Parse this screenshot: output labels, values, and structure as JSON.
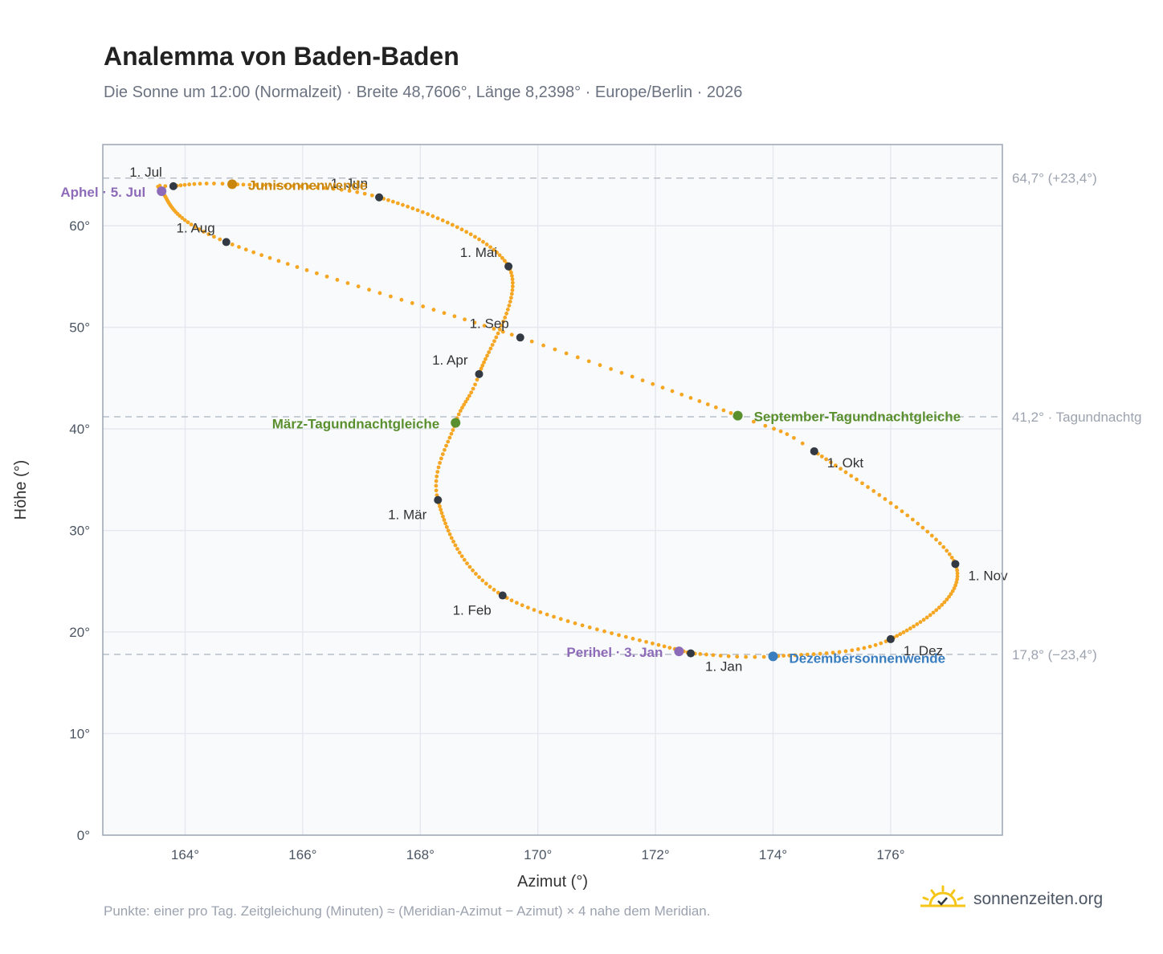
{
  "header": {
    "title": "Analemma von Baden-Baden",
    "subtitle": "Die Sonne um 12:00 (Normalzeit) · Breite 48,7606°, Länge 8,2398° · Europe/Berlin · 2026"
  },
  "footer": {
    "footnote": "Punkte: einer pro Tag. Zeitgleichung (Minuten) ≈ (Meridian-Azimut − Azimut) × 4 nahe dem Meridian.",
    "brand": "sonnenzeiten.org",
    "brand_icon": "sun-check-icon"
  },
  "colors": {
    "curve": "#f5a623",
    "month_marker": "#333a44",
    "solstice_june": "#c8860d",
    "equinox": "#5a8f2e",
    "solstice_december": "#3a7ebf",
    "apsis": "#8e6bb8",
    "plot_background": "#f8fafc",
    "grid": "#e5e9ef",
    "reference_line": "#b8bfc8"
  },
  "chart_data": {
    "type": "scatter",
    "title": "Analemma von Baden-Baden",
    "xlabel": "Azimut (°)",
    "ylabel": "Höhe (°)",
    "xlim": [
      162.6,
      177.9
    ],
    "ylim": [
      0,
      68
    ],
    "x_ticks": [
      164,
      166,
      168,
      170,
      172,
      174,
      176
    ],
    "x_tick_labels": [
      "164°",
      "166°",
      "168°",
      "170°",
      "172°",
      "174°",
      "176°"
    ],
    "y_ticks": [
      0,
      10,
      20,
      30,
      40,
      50,
      60
    ],
    "y_tick_labels": [
      "0°",
      "10°",
      "20°",
      "30°",
      "40°",
      "50°",
      "60°"
    ],
    "grid": true,
    "curve_keypoints": [
      {
        "doy": 1,
        "az": 172.6,
        "alt": 17.9
      },
      {
        "doy": 32,
        "az": 169.4,
        "alt": 23.6
      },
      {
        "doy": 60,
        "az": 168.3,
        "alt": 33.0
      },
      {
        "doy": 78,
        "az": 168.6,
        "alt": 40.6
      },
      {
        "doy": 91,
        "az": 169.0,
        "alt": 45.4
      },
      {
        "doy": 121,
        "az": 169.5,
        "alt": 56.0
      },
      {
        "doy": 152,
        "az": 167.3,
        "alt": 62.8
      },
      {
        "doy": 172,
        "az": 164.8,
        "alt": 64.1
      },
      {
        "doy": 182,
        "az": 163.8,
        "alt": 63.9
      },
      {
        "doy": 186,
        "az": 163.6,
        "alt": 63.4
      },
      {
        "doy": 213,
        "az": 164.7,
        "alt": 58.4
      },
      {
        "doy": 244,
        "az": 169.7,
        "alt": 49.0
      },
      {
        "doy": 266,
        "az": 173.4,
        "alt": 41.3
      },
      {
        "doy": 274,
        "az": 174.7,
        "alt": 37.8
      },
      {
        "doy": 305,
        "az": 177.1,
        "alt": 26.7
      },
      {
        "doy": 335,
        "az": 176.0,
        "alt": 19.3
      },
      {
        "doy": 355,
        "az": 174.0,
        "alt": 17.6
      },
      {
        "doy": 366,
        "az": 172.6,
        "alt": 17.9
      }
    ],
    "month_markers": [
      {
        "label": "1. Jan",
        "az": 172.6,
        "alt": 17.9,
        "pos": "below"
      },
      {
        "label": "1. Feb",
        "az": 169.4,
        "alt": 23.6,
        "pos": "below-left"
      },
      {
        "label": "1. Mär",
        "az": 168.3,
        "alt": 33.0,
        "pos": "below-left"
      },
      {
        "label": "1. Apr",
        "az": 169.0,
        "alt": 45.4,
        "pos": "above-left"
      },
      {
        "label": "1. Mai",
        "az": 169.5,
        "alt": 56.0,
        "pos": "above-left"
      },
      {
        "label": "1. Jun",
        "az": 167.3,
        "alt": 62.8,
        "pos": "above-left"
      },
      {
        "label": "1. Jul",
        "az": 163.8,
        "alt": 63.9,
        "pos": "above-left"
      },
      {
        "label": "1. Aug",
        "az": 164.7,
        "alt": 58.4,
        "pos": "above-left"
      },
      {
        "label": "1. Sep",
        "az": 169.7,
        "alt": 49.0,
        "pos": "above-left"
      },
      {
        "label": "1. Okt",
        "az": 174.7,
        "alt": 37.8,
        "pos": "below-right"
      },
      {
        "label": "1. Nov",
        "az": 177.1,
        "alt": 26.7,
        "pos": "below-right"
      },
      {
        "label": "1. Dez",
        "az": 176.0,
        "alt": 19.3,
        "pos": "below-right"
      }
    ],
    "events": [
      {
        "label": "Junisonnenwende",
        "az": 164.8,
        "alt": 64.1,
        "color": "#c8860d",
        "pos": "right"
      },
      {
        "label": "März-Tagundnachtgleiche",
        "az": 168.6,
        "alt": 40.6,
        "color": "#5a8f2e",
        "pos": "left"
      },
      {
        "label": "September-Tagundnachtgleiche",
        "az": 173.4,
        "alt": 41.3,
        "color": "#5a8f2e",
        "pos": "right"
      },
      {
        "label": "Dezembersonnenwende",
        "az": 174.0,
        "alt": 17.6,
        "color": "#3a7ebf",
        "pos": "right-low"
      },
      {
        "label": "Aphel · 5. Jul",
        "az": 163.6,
        "alt": 63.4,
        "color": "#8e6bb8",
        "pos": "left"
      },
      {
        "label": "Perihel · 3. Jan",
        "az": 172.4,
        "alt": 18.1,
        "color": "#8e6bb8",
        "pos": "left"
      }
    ],
    "reference_lines": [
      {
        "alt": 64.7,
        "label": "64,7° (+23,4°)"
      },
      {
        "alt": 41.2,
        "label": "41,2° · Tagundnachtg"
      },
      {
        "alt": 17.8,
        "label": "17,8° (−23,4°)"
      }
    ]
  }
}
